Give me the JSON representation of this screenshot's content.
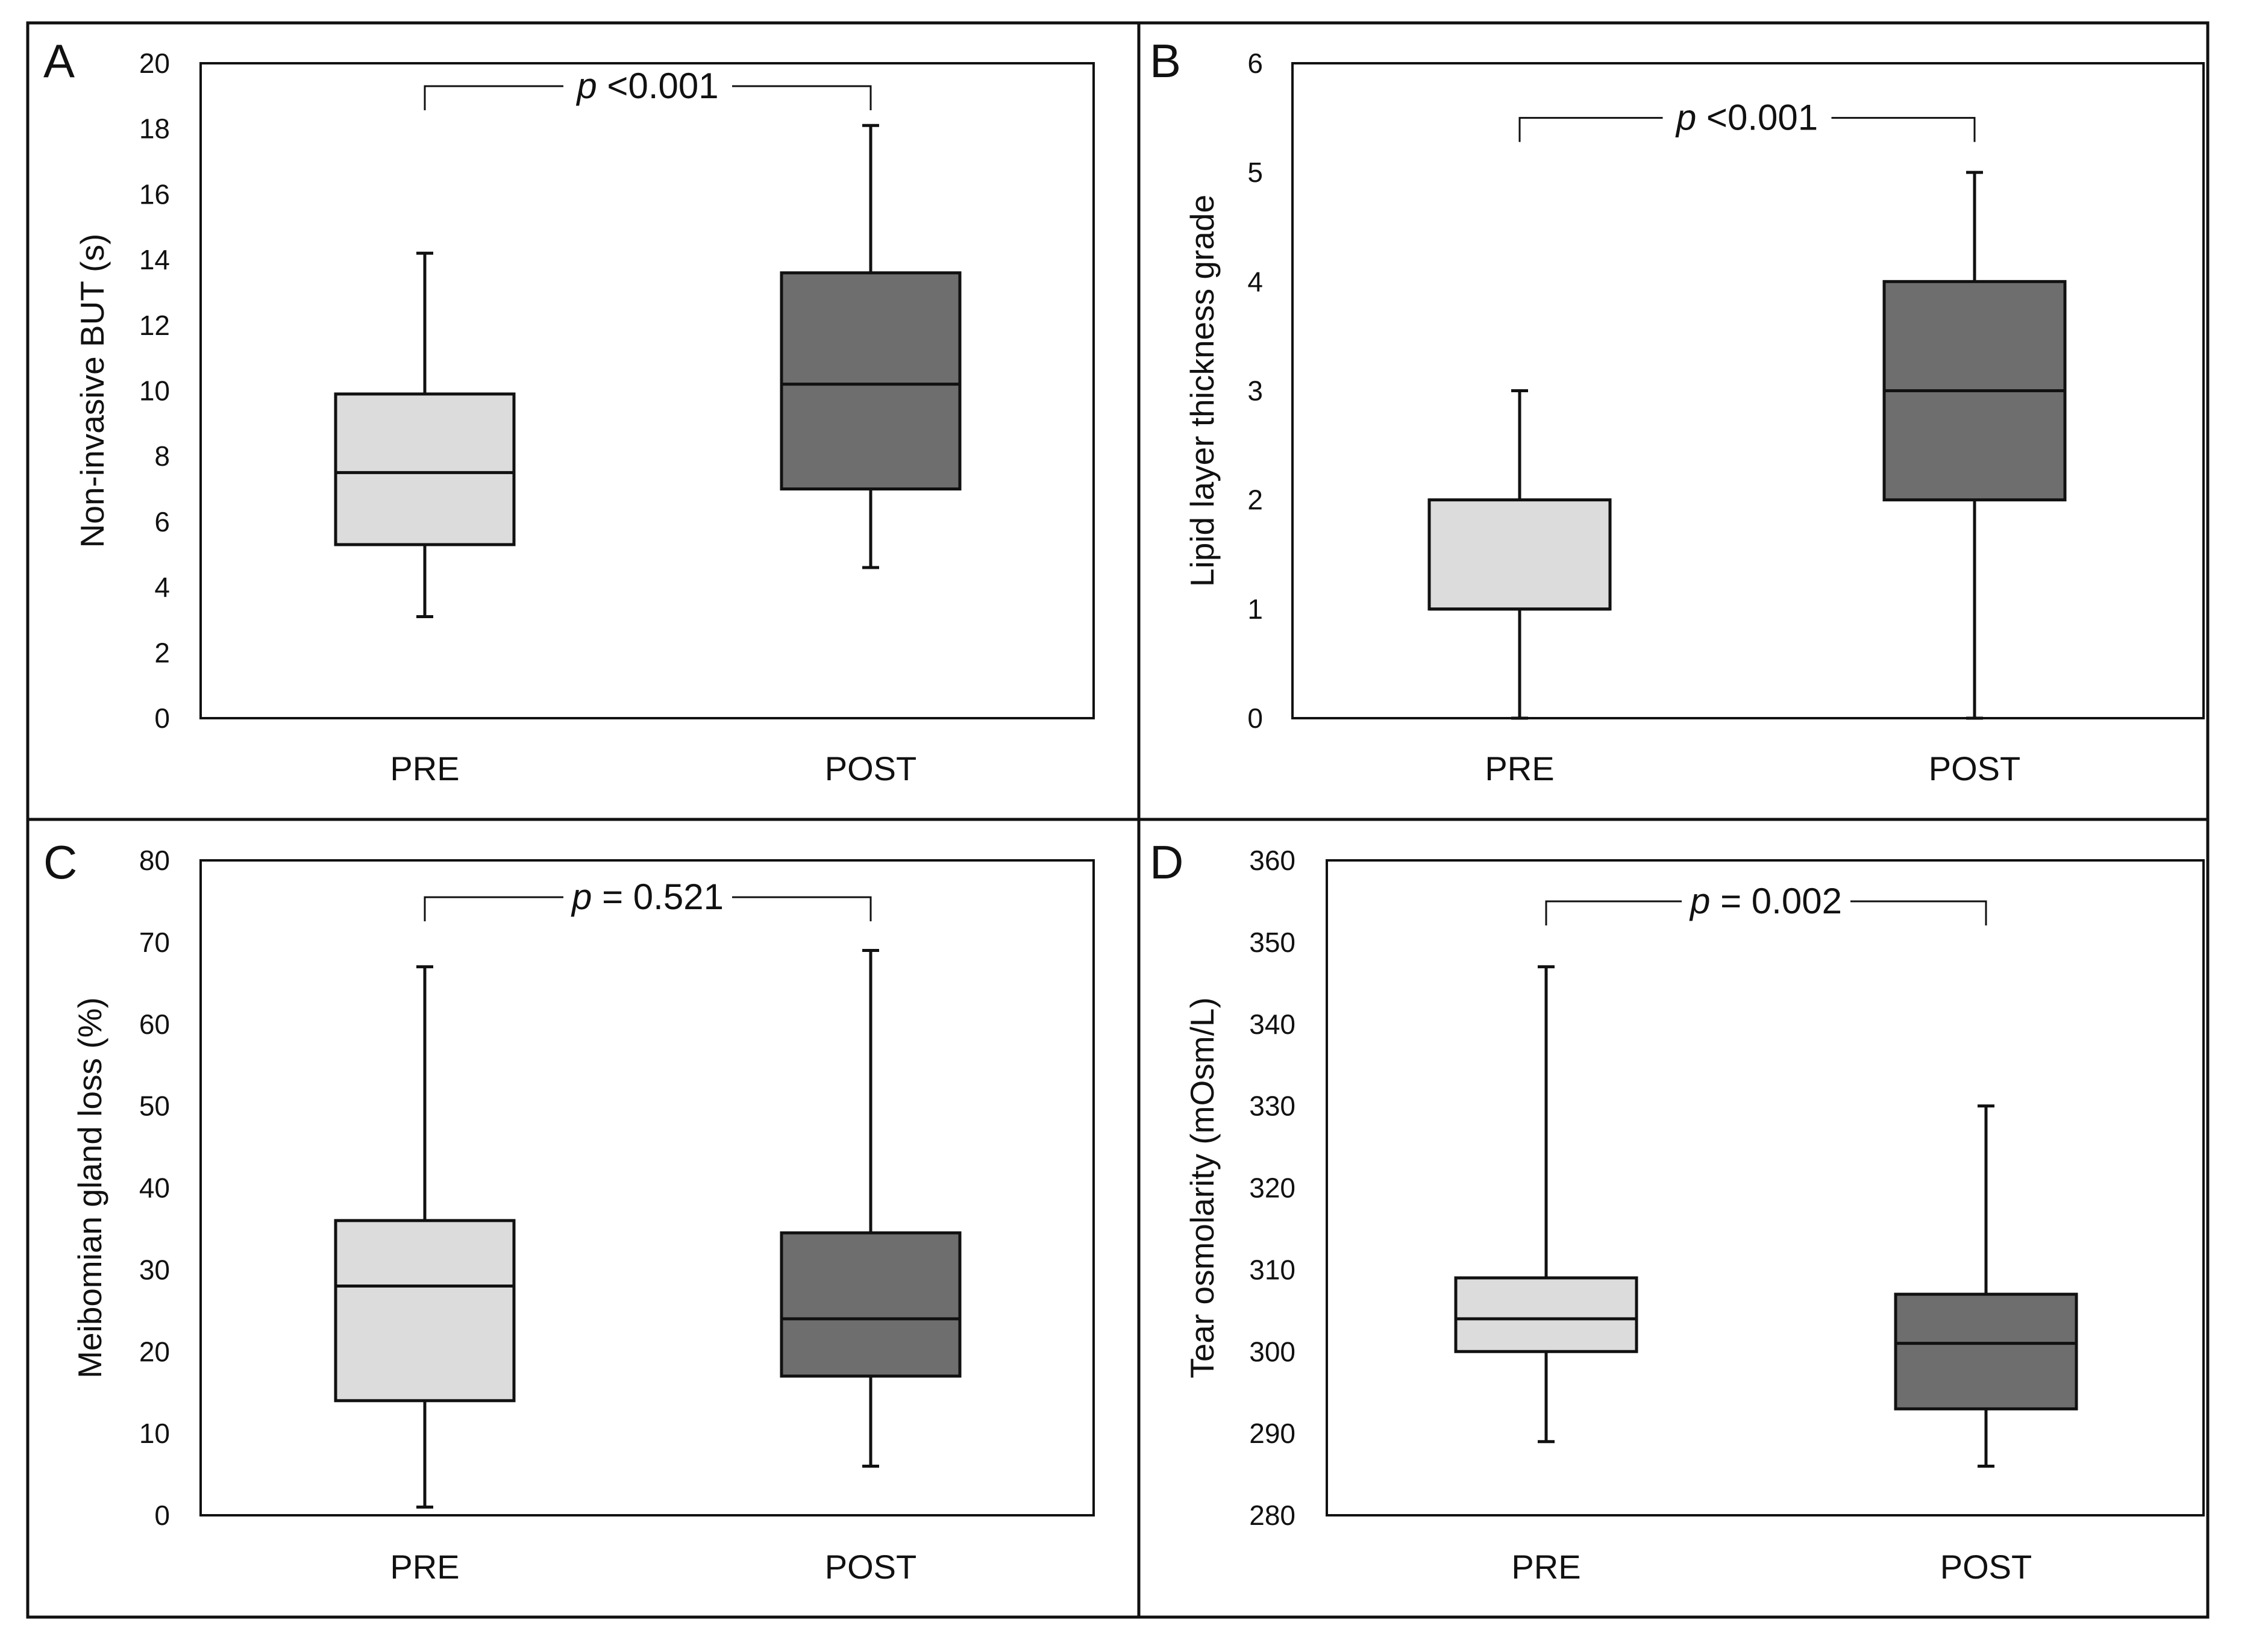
{
  "colors": {
    "pre_fill": "#dcdcdc",
    "post_fill": "#6e6e6e",
    "stroke": "#111111",
    "background": "#ffffff"
  },
  "chart_data": [
    {
      "panel": "A",
      "type": "boxplot",
      "ylabel": "Non-invasive BUT (s)",
      "ylim": [
        0,
        20
      ],
      "yticks": [
        "0",
        "2",
        "4",
        "6",
        "8",
        "10",
        "12",
        "14",
        "16",
        "18",
        "20"
      ],
      "categories": [
        "PRE",
        "POST"
      ],
      "series": [
        {
          "name": "PRE",
          "min": 3.1,
          "q1": 5.3,
          "median": 7.5,
          "q3": 9.9,
          "max": 14.2
        },
        {
          "name": "POST",
          "min": 4.6,
          "q1": 7.0,
          "median": 10.2,
          "q3": 13.6,
          "max": 18.1
        }
      ],
      "annotation": {
        "p_symbol": "p",
        "p_rest": " <0.001",
        "y": 19.3
      }
    },
    {
      "panel": "B",
      "type": "boxplot",
      "ylabel": "Lipid layer thickness grade",
      "ylim": [
        0,
        6
      ],
      "yticks": [
        "0",
        "1",
        "2",
        "3",
        "4",
        "5",
        "6"
      ],
      "categories": [
        "PRE",
        "POST"
      ],
      "series": [
        {
          "name": "PRE",
          "min": 0,
          "q1": 1,
          "median": 1,
          "q3": 2,
          "max": 3
        },
        {
          "name": "POST",
          "min": 0,
          "q1": 2,
          "median": 3,
          "q3": 4,
          "max": 5
        }
      ],
      "annotation": {
        "p_symbol": "p",
        "p_rest": " <0.001",
        "y": 5.5
      }
    },
    {
      "panel": "C",
      "type": "boxplot",
      "ylabel": "Meibomian gland loss (%)",
      "ylim": [
        0,
        80
      ],
      "yticks": [
        "0",
        "10",
        "20",
        "30",
        "40",
        "50",
        "60",
        "70",
        "80"
      ],
      "categories": [
        "PRE",
        "POST"
      ],
      "series": [
        {
          "name": "PRE",
          "min": 1,
          "q1": 14,
          "median": 28,
          "q3": 36,
          "max": 67
        },
        {
          "name": "POST",
          "min": 6,
          "q1": 17,
          "median": 24,
          "q3": 34.5,
          "max": 69
        }
      ],
      "annotation": {
        "p_symbol": "p",
        "p_rest": " = 0.521",
        "y": 75.5
      }
    },
    {
      "panel": "D",
      "type": "boxplot",
      "ylabel": "Tear osmolarity (mOsm/L)",
      "ylim": [
        280,
        360
      ],
      "yticks": [
        "280",
        "290",
        "300",
        "310",
        "320",
        "330",
        "340",
        "350",
        "360"
      ],
      "categories": [
        "PRE",
        "POST"
      ],
      "series": [
        {
          "name": "PRE",
          "min": 289,
          "q1": 300,
          "median": 304,
          "q3": 309,
          "max": 347
        },
        {
          "name": "POST",
          "min": 286,
          "q1": 293,
          "median": 301,
          "q3": 307,
          "max": 330
        }
      ],
      "annotation": {
        "p_symbol": "p",
        "p_rest": " = 0.002",
        "y": 355
      }
    }
  ]
}
